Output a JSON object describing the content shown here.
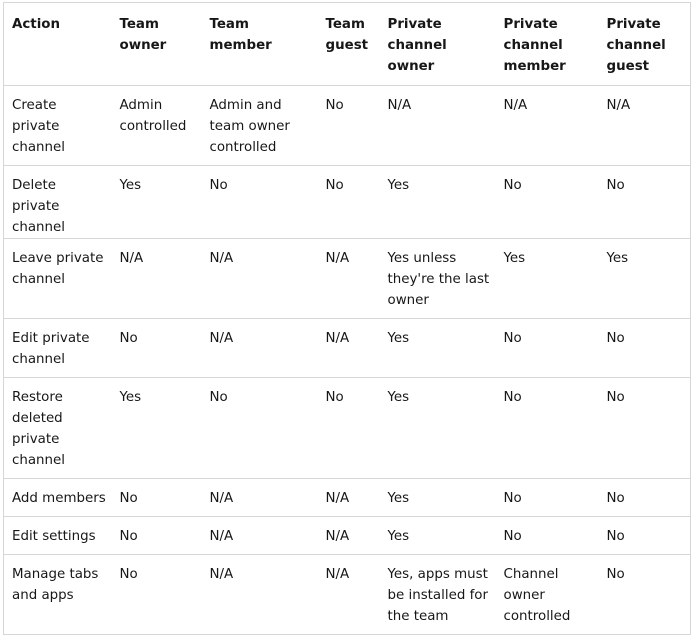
{
  "table": {
    "headers": [
      "Action",
      "Team owner",
      "Team member",
      "Team guest",
      "Private channel owner",
      "Private channel member",
      "Private channel guest"
    ],
    "rows": [
      [
        "Create private channel",
        "Admin controlled",
        "Admin and team owner controlled",
        "No",
        "N/A",
        "N/A",
        "N/A"
      ],
      [
        "Delete private channel",
        "Yes",
        "No",
        "No",
        "Yes",
        "No",
        "No"
      ],
      [
        "Leave private channel",
        "N/A",
        "N/A",
        "N/A",
        "Yes unless they're the last owner",
        "Yes",
        "Yes"
      ],
      [
        "Edit private channel",
        "No",
        "N/A",
        "N/A",
        "Yes",
        "No",
        "No"
      ],
      [
        "Restore deleted private channel",
        "Yes",
        "No",
        "No",
        "Yes",
        "No",
        "No"
      ],
      [
        "Add members",
        "No",
        "N/A",
        "N/A",
        "Yes",
        "No",
        "No"
      ],
      [
        "Edit settings",
        "No",
        "N/A",
        "N/A",
        "Yes",
        "No",
        "No"
      ],
      [
        "Manage tabs and apps",
        "No",
        "N/A",
        "N/A",
        "Yes, apps must be installed for the team",
        "Channel owner controlled",
        "No"
      ]
    ]
  }
}
